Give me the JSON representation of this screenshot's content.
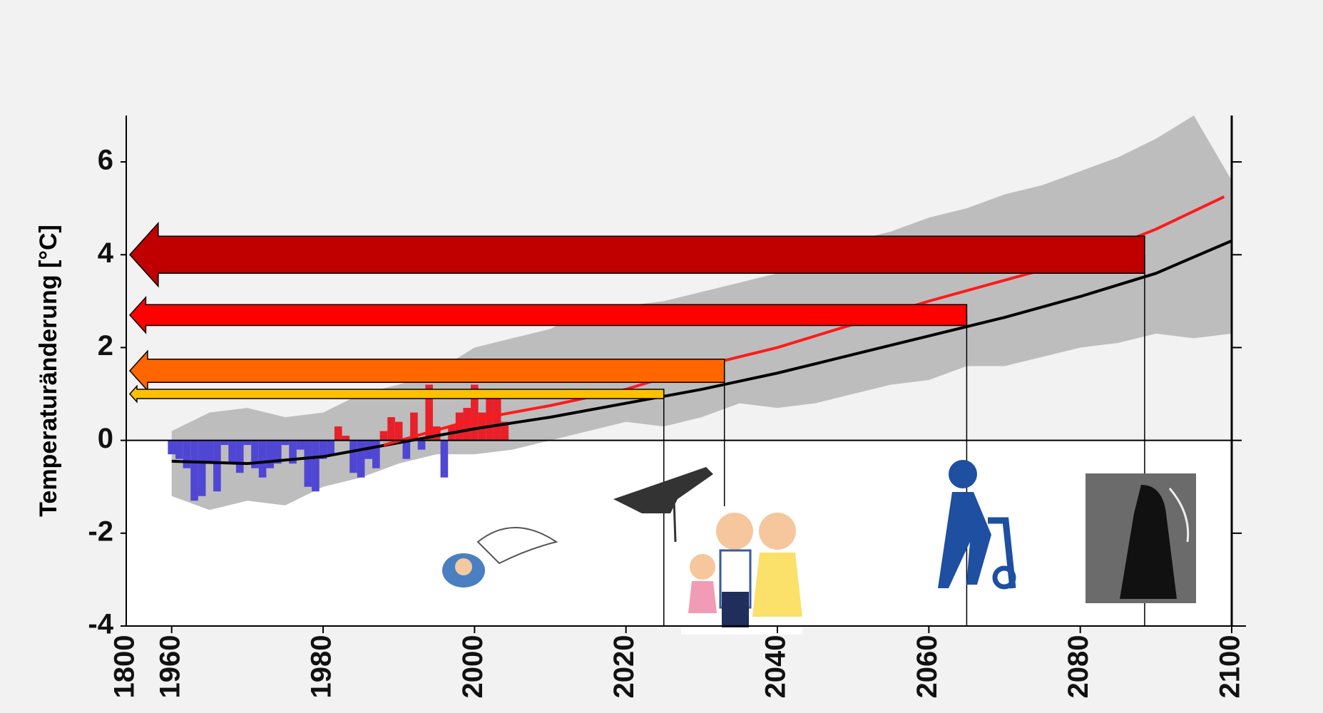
{
  "chart_data": {
    "type": "line",
    "y_label": "Temperaturänderung [°C]",
    "x_start_label": "1800",
    "xlim": [
      1954,
      2100
    ],
    "xticks": [
      1960,
      1980,
      2000,
      2020,
      2040,
      2060,
      2080,
      2100
    ],
    "ylim": [
      -4,
      7
    ],
    "yticks": [
      -4,
      -2,
      0,
      2,
      4,
      6
    ],
    "band": {
      "color": "#bdbdbd",
      "x": [
        1960,
        1965,
        1970,
        1975,
        1980,
        1985,
        1990,
        1995,
        2000,
        2005,
        2010,
        2015,
        2020,
        2025,
        2030,
        2035,
        2040,
        2045,
        2050,
        2055,
        2060,
        2065,
        2070,
        2075,
        2080,
        2085,
        2090,
        2095,
        2100
      ],
      "upper": [
        0.2,
        0.6,
        0.7,
        0.5,
        0.6,
        1.0,
        1.2,
        1.5,
        2.0,
        2.2,
        2.4,
        2.8,
        2.9,
        3.0,
        3.2,
        3.4,
        3.6,
        4.0,
        4.3,
        4.5,
        4.8,
        5.0,
        5.3,
        5.5,
        5.8,
        6.1,
        6.5,
        7.0,
        5.6
      ],
      "lower": [
        -1.2,
        -1.5,
        -1.3,
        -1.4,
        -1.0,
        -0.8,
        -0.5,
        -0.3,
        -0.3,
        -0.2,
        0.0,
        0.2,
        0.4,
        0.3,
        0.5,
        0.8,
        0.7,
        0.8,
        1.0,
        1.2,
        1.3,
        1.6,
        1.6,
        1.8,
        2.0,
        2.1,
        2.3,
        2.2,
        2.3
      ]
    },
    "bars": {
      "positive_color": "#e8202a",
      "negative_color": "#5046d4",
      "x": [
        1960,
        1961,
        1962,
        1963,
        1964,
        1965,
        1966,
        1967,
        1968,
        1969,
        1970,
        1971,
        1972,
        1973,
        1974,
        1975,
        1976,
        1977,
        1978,
        1979,
        1980,
        1981,
        1982,
        1983,
        1984,
        1985,
        1986,
        1987,
        1988,
        1989,
        1990,
        1991,
        1992,
        1993,
        1994,
        1995,
        1996,
        1997,
        1998,
        1999,
        2000,
        2001,
        2002,
        2003,
        2004
      ],
      "values": [
        -0.3,
        -0.4,
        -0.6,
        -1.3,
        -1.2,
        -0.5,
        -1.1,
        -0.1,
        -0.5,
        -0.7,
        -0.1,
        -0.6,
        -0.8,
        -0.6,
        -0.5,
        -0.1,
        -0.5,
        -0.2,
        -1.0,
        -1.1,
        -0.4,
        -0.3,
        0.3,
        0.1,
        -0.7,
        -0.8,
        -0.4,
        -0.6,
        0.2,
        0.5,
        0.4,
        -0.4,
        0.6,
        -0.2,
        1.2,
        0.3,
        -0.8,
        0.3,
        0.6,
        0.7,
        1.2,
        0.6,
        1.1,
        0.9,
        0.4
      ]
    },
    "series": [
      {
        "color": "#000000",
        "x": [
          1960,
          1970,
          1980,
          1990,
          2000,
          2010,
          2020,
          2030,
          2040,
          2050,
          2060,
          2070,
          2080,
          2090,
          2100
        ],
        "values": [
          -0.45,
          -0.5,
          -0.35,
          -0.05,
          0.25,
          0.5,
          0.8,
          1.1,
          1.45,
          1.85,
          2.25,
          2.65,
          3.1,
          3.6,
          4.3
        ]
      },
      {
        "color": "#ff1a1a",
        "x": [
          1988,
          2000,
          2010,
          2020,
          2030,
          2040,
          2050,
          2060,
          2070,
          2080,
          2090,
          2099
        ],
        "values": [
          -0.1,
          0.45,
          0.75,
          1.1,
          1.6,
          2.0,
          2.5,
          3.0,
          3.45,
          3.9,
          4.55,
          5.25
        ]
      }
    ],
    "arrows": [
      {
        "value": 4,
        "end": 2088.5,
        "color": "#c00000",
        "width": 0.8
      },
      {
        "value": 2.7,
        "end": 2065,
        "color": "#ff0000",
        "width": 0.45
      },
      {
        "value": 1.5,
        "end": 2033,
        "color": "#ff6600",
        "width": 0.5
      },
      {
        "value": 1.0,
        "end": 2025,
        "color": "#ffc000",
        "width": 0.2
      }
    ]
  }
}
